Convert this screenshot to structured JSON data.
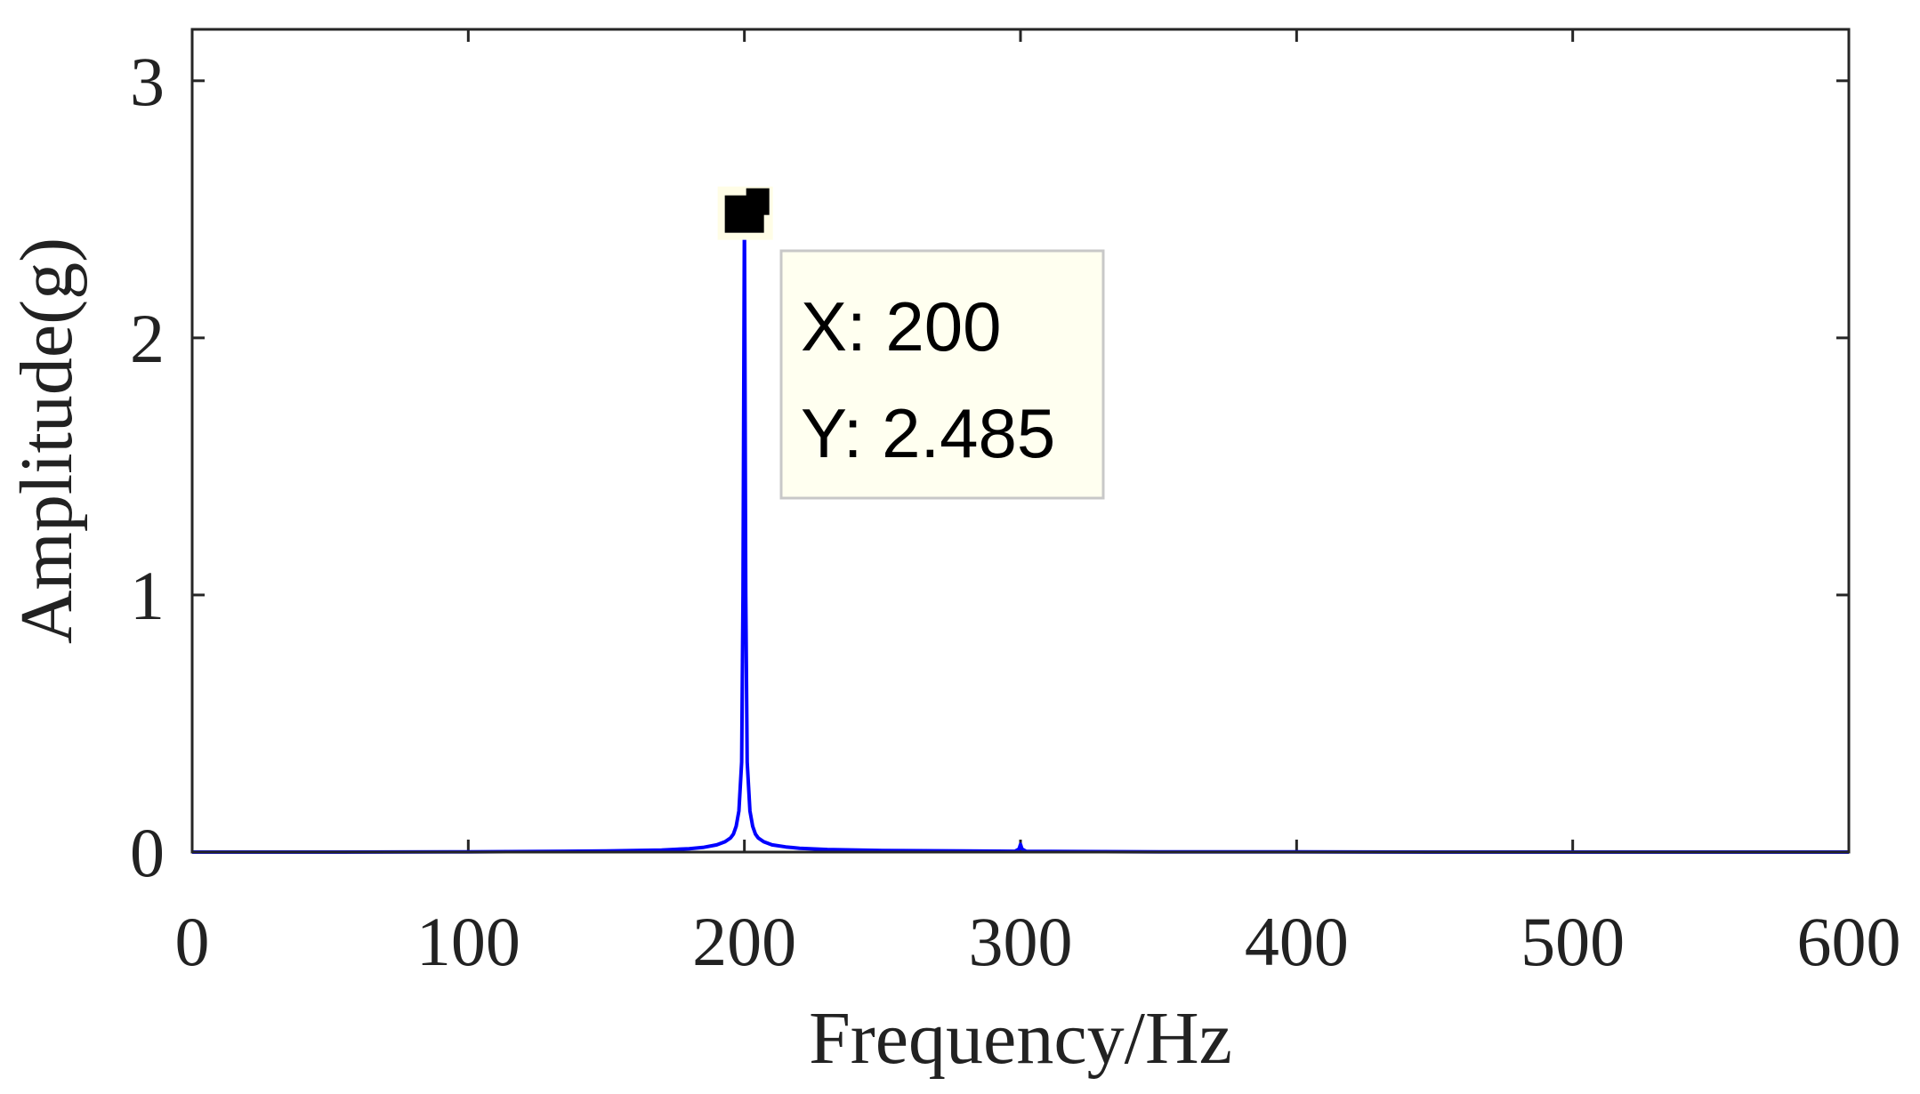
{
  "chart_data": {
    "type": "line",
    "xlabel": "Frequency/Hz",
    "ylabel": "Amplitude(g)",
    "xlim": [
      0,
      600
    ],
    "ylim": [
      0,
      3.2
    ],
    "xticks": [
      "0",
      "100",
      "200",
      "300",
      "400",
      "500",
      "600"
    ],
    "yticks": [
      "0",
      "1",
      "2",
      "3"
    ],
    "grid": false,
    "line_color": "#0000ff",
    "series": [
      {
        "x": [
          0,
          50,
          100,
          150,
          170,
          180,
          185,
          190,
          193,
          195,
          196,
          197,
          198,
          199,
          199.5,
          200,
          200.5,
          201,
          202,
          203,
          204,
          205,
          207,
          210,
          215,
          220,
          230,
          250,
          280,
          298,
          299.5,
          300,
          300.5,
          302,
          320,
          350,
          400,
          450,
          500,
          550,
          600
        ],
        "y": [
          0,
          0,
          0.001,
          0.004,
          0.008,
          0.013,
          0.018,
          0.028,
          0.04,
          0.055,
          0.07,
          0.1,
          0.16,
          0.35,
          1.0,
          2.485,
          1.0,
          0.35,
          0.16,
          0.1,
          0.07,
          0.055,
          0.04,
          0.028,
          0.02,
          0.015,
          0.01,
          0.006,
          0.004,
          0.003,
          0.012,
          0.03,
          0.012,
          0.003,
          0.002,
          0.001,
          0.001,
          0,
          0,
          0,
          0
        ]
      }
    ],
    "datatip": {
      "x_text": "X: 200",
      "y_text": "Y: 2.485",
      "x": 200,
      "y": 2.485
    }
  }
}
